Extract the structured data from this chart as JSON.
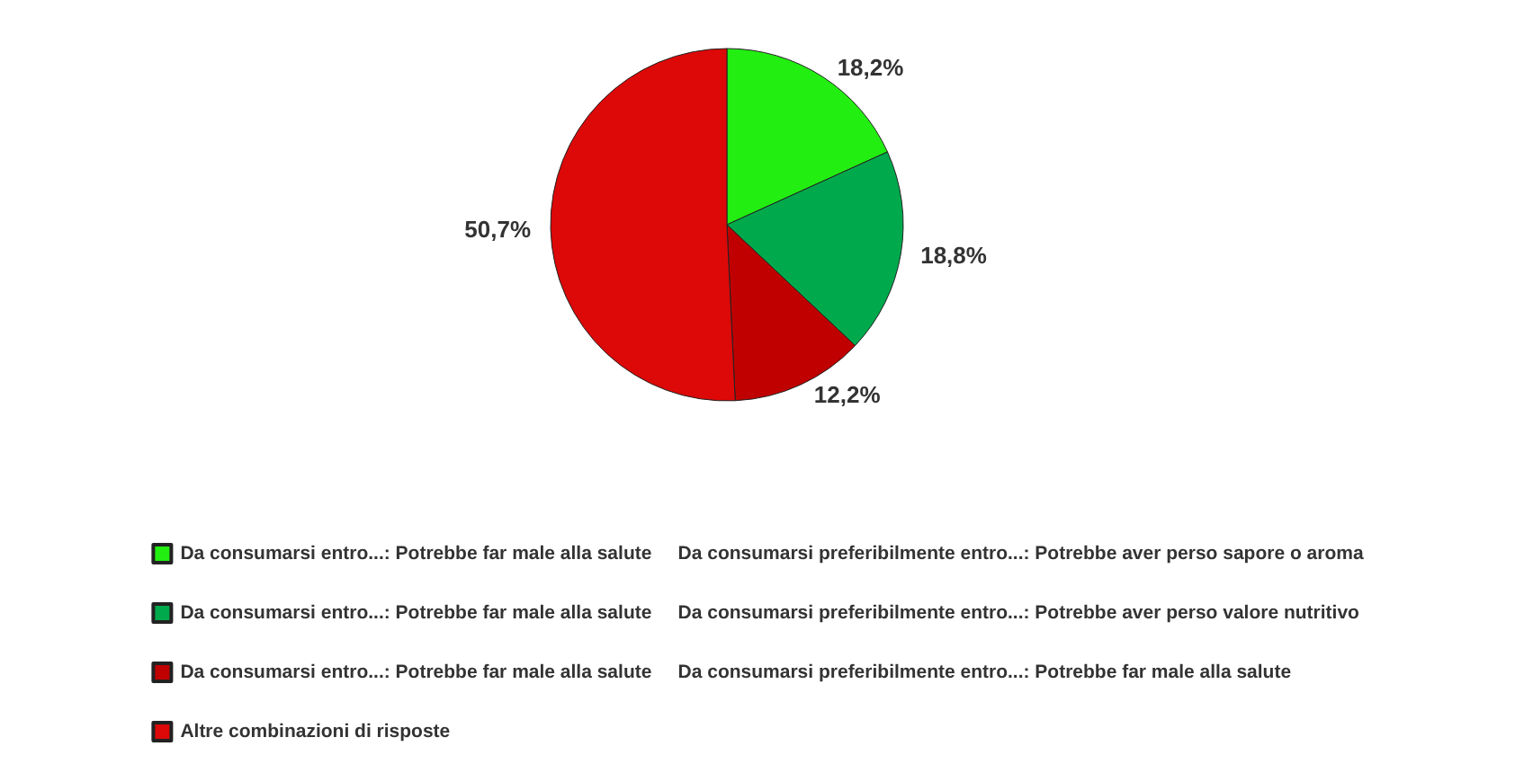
{
  "chart_data": {
    "type": "pie",
    "categories": [
      "Da consumarsi entro...: Potrebbe far male alla salute     Da consumarsi preferibilmente entro...: Potrebbe aver perso sapore o aroma",
      "Da consumarsi entro...: Potrebbe far male alla salute     Da consumarsi preferibilmente entro...: Potrebbe aver perso valore nutritivo",
      "Da consumarsi entro...: Potrebbe far male alla salute     Da consumarsi preferibilmente entro...: Potrebbe far male alla salute",
      "Altre combinazioni di risposte"
    ],
    "values": [
      18.2,
      18.8,
      12.2,
      50.7
    ],
    "colors": [
      "#22ee11",
      "#00aa4c",
      "#c00000",
      "#dd0808"
    ],
    "value_labels": [
      "18,2%",
      "18,8%",
      "12,2%",
      "50,7%"
    ],
    "legend": "bottom"
  }
}
